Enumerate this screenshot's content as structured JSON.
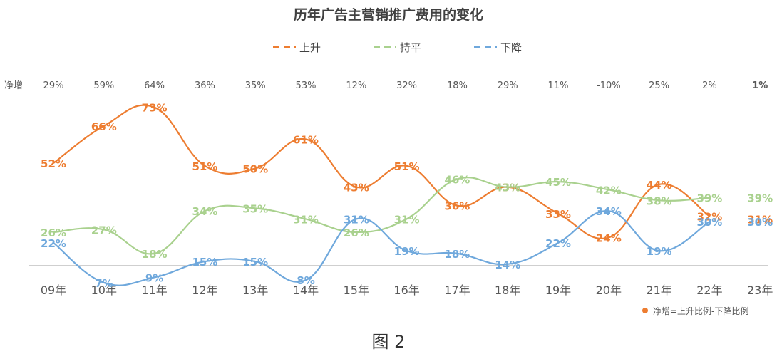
{
  "chart_data": {
    "type": "line",
    "title": "历年广告主营销推广费用的变化",
    "categories": [
      "09年",
      "10年",
      "11年",
      "12年",
      "13年",
      "14年",
      "15年",
      "16年",
      "17年",
      "18年",
      "19年",
      "20年",
      "21年",
      "22年",
      "23年"
    ],
    "series": [
      {
        "name": "上升",
        "color": "#ED7D31",
        "values": [
          52,
          66,
          73,
          51,
          50,
          61,
          43,
          51,
          36,
          43,
          33,
          24,
          44,
          32,
          31
        ]
      },
      {
        "name": "持平",
        "color": "#A9D18E",
        "values": [
          26,
          27,
          18,
          34,
          35,
          31,
          26,
          31,
          46,
          43,
          45,
          42,
          38,
          39,
          39
        ]
      },
      {
        "name": "下降",
        "color": "#6FA8DC",
        "values": [
          22,
          7,
          9,
          15,
          15,
          8,
          31,
          19,
          18,
          14,
          22,
          34,
          19,
          30,
          30
        ]
      }
    ],
    "net_label": "净增",
    "net_values": [
      "29%",
      "59%",
      "64%",
      "36%",
      "35%",
      "53%",
      "12%",
      "32%",
      "18%",
      "29%",
      "11%",
      "-10%",
      "25%",
      "2%",
      "1%"
    ],
    "net_highlight_color": "#E00000",
    "footnote": "净增=上升比例-下降比例",
    "legend_position": "top"
  },
  "caption": "图 2"
}
